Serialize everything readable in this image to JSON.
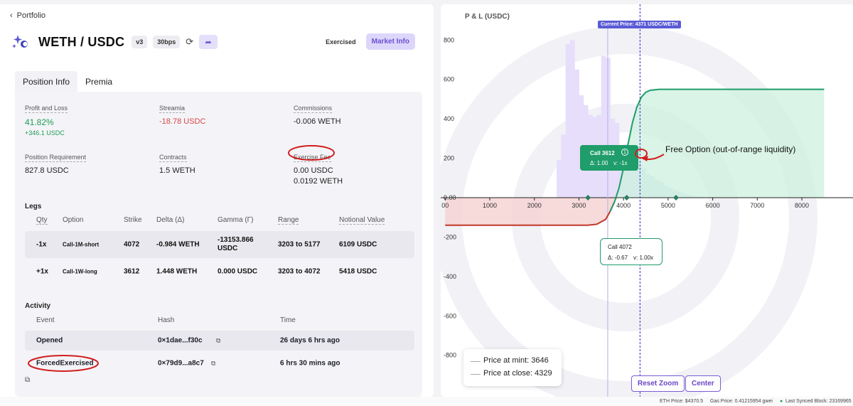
{
  "nav": {
    "back_label": "Portfolio"
  },
  "header": {
    "pair": "WETH / USDC",
    "version": "v3",
    "fee_tier": "30bps",
    "status": "Exercised",
    "market_info": "Market Info"
  },
  "tabs": [
    "Position Info",
    "Premia"
  ],
  "metrics": {
    "pnl": {
      "label": "Profit and Loss",
      "percent": "41.82%",
      "amount": "+346.1 USDC"
    },
    "streamia": {
      "label": "Streamia",
      "value": "-18.78 USDC"
    },
    "commissions": {
      "label": "Commissions",
      "value": "-0.006 WETH"
    },
    "requirement": {
      "label": "Position Requirement",
      "value": "827.8 USDC"
    },
    "contracts": {
      "label": "Contracts",
      "value": "1.5 WETH"
    },
    "exercise_fee": {
      "label": "Exercise Fee",
      "value1": "0.00 USDC",
      "value2": "0.0192 WETH"
    }
  },
  "legs": {
    "title": "Legs",
    "headers": [
      "Qty",
      "Option",
      "Strike",
      "Delta (Δ)",
      "Gamma (Γ)",
      "Range",
      "Notional Value"
    ],
    "rows": [
      {
        "qty": "-1x",
        "option": "Call-1M-short",
        "strike": "4072",
        "delta": "-0.984 WETH",
        "gamma": "-13153.866 USDC",
        "range": "3203 to 5177",
        "notional": "6109 USDC"
      },
      {
        "qty": "+1x",
        "option": "Call-1W-long",
        "strike": "3612",
        "delta": "1.448 WETH",
        "gamma": "0.000 USDC",
        "range": "3203 to 4072",
        "notional": "5418 USDC"
      }
    ]
  },
  "activity": {
    "title": "Activity",
    "headers": [
      "Event",
      "Hash",
      "Time"
    ],
    "rows": [
      {
        "event": "Opened",
        "hash": "0×1dae...f30c",
        "time": "26 days 6 hrs ago"
      },
      {
        "event": "ForcedExercised",
        "hash": "0×79d9...a8c7",
        "time": "6 hrs 30 mins ago"
      }
    ]
  },
  "chart_panel": {
    "y_title": "P & L (USDC)",
    "current_price_label": "Current Price: 4371 USDC/WETH",
    "annotation": "Free Option (out-of-range liquidity)",
    "tooltip_call_3612": {
      "title": "Call 3612",
      "badge": "1",
      "delta": "Δ: 1.00",
      "v": "v: -1x"
    },
    "tooltip_call_4072": {
      "title": "Call 4072",
      "delta": "Δ: -0.67",
      "v": "v: 1.00x"
    },
    "legend": {
      "mint": "Price at mint: 3646",
      "close": "Price at close: 4329"
    },
    "reset_zoom": "Reset Zoom",
    "center": "Center"
  },
  "chart_data": {
    "type": "line",
    "xlabel": "",
    "ylabel": "P & L (USDC)",
    "x_ticks": [
      "00",
      "1000",
      "2000",
      "3000",
      "4000",
      "5000",
      "6000",
      "7000",
      "8000"
    ],
    "y_ticks": [
      "800",
      "600",
      "400",
      "200",
      "0.00",
      "-200",
      "-400",
      "-600",
      "-800"
    ],
    "xlim": [
      -100,
      8500
    ],
    "ylim": [
      -900,
      830
    ],
    "series": [
      {
        "x": [
          0,
          3000,
          3200,
          3400,
          3600,
          3700,
          3800,
          3900,
          4000,
          4100,
          4200,
          4300,
          4400,
          4500,
          4600,
          4800,
          5200,
          8500
        ],
        "y": [
          -140,
          -140,
          -140,
          -135,
          -110,
          -70,
          -20,
          50,
          150,
          270,
          380,
          460,
          510,
          535,
          545,
          550,
          550,
          550
        ]
      }
    ],
    "histogram": {
      "bins": [
        2500,
        2600,
        2700,
        2800,
        2900,
        3000,
        3100,
        3200,
        3300,
        3400,
        3500,
        3600,
        3700,
        3800,
        3900,
        4000,
        4100,
        4200,
        4300,
        4400,
        4500,
        4600,
        4700,
        4800,
        4900,
        5000,
        5100,
        5200,
        5300,
        5400,
        5500,
        5600
      ],
      "values": [
        190,
        320,
        780,
        800,
        650,
        520,
        470,
        420,
        410,
        420,
        720,
        710,
        400,
        380,
        260,
        270,
        250,
        200,
        180,
        150,
        120,
        110,
        90,
        80,
        60,
        50,
        40,
        30,
        20,
        15,
        10,
        5
      ]
    },
    "markers": [
      3203,
      4072,
      5177
    ],
    "price_at_mint": 3646,
    "price_at_close": 4329,
    "current_price": 4371
  },
  "status_bar": {
    "eth_price": "ETH Price: $4370.5",
    "gas_price": "Gas Price: 0.41215954 gwei",
    "last_block": "Last Synced Block: 23169965"
  },
  "colors": {
    "accent": "#6b5bd6",
    "profit": "#1f9d55",
    "loss": "#d64545"
  }
}
